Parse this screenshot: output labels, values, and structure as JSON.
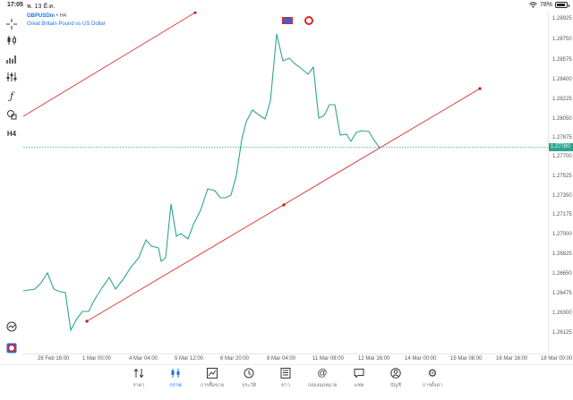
{
  "status_bar": {
    "time": "17:05",
    "date": "พ. 13 มี.ค.",
    "battery": "78%"
  },
  "legend": {
    "symbol": "GBPUSDm",
    "timeframe": "H4",
    "description": "Great Britain Pound vs US Dollar"
  },
  "price_axis": [
    "1.28925",
    "1.28750",
    "1.28575",
    "1.28400",
    "1.28225",
    "1.28050",
    "1.27875",
    "1.27700",
    "1.27525",
    "1.27350",
    "1.27175",
    "1.27000",
    "1.26825",
    "1.26650",
    "1.26475",
    "1.26300",
    "1.26125"
  ],
  "current_price": "1.27780",
  "time_axis": [
    "28 Feb 16:00",
    "1 Mar 00:00",
    "4 Mar 04:00",
    "5 Mar 12:00",
    "6 Mar 20:00",
    "8 Mar 04:00",
    "11 Mar 08:00",
    "12 Mar 16:00",
    "14 Mar 00:00",
    "15 Mar 08:00",
    "16 Mar 16:00",
    "18 Mar 00:00"
  ],
  "nav": [
    {
      "label": "ราคา",
      "icon": "quotes-icon"
    },
    {
      "label": "กราฟ",
      "icon": "chart-icon",
      "active": true
    },
    {
      "label": "การซื้อขาย",
      "icon": "trade-icon"
    },
    {
      "label": "ประวัติ",
      "icon": "history-icon"
    },
    {
      "label": "ข่าว",
      "icon": "news-icon"
    },
    {
      "label": "กล่องจดหมาย",
      "icon": "mailbox-icon"
    },
    {
      "label": "แชท",
      "icon": "chat-icon"
    },
    {
      "label": "บัญชี",
      "icon": "account-icon"
    },
    {
      "label": "การตั้งค่า",
      "icon": "settings-icon"
    }
  ],
  "colors": {
    "price_line": "#2ca58d",
    "trend_line": "#e03030",
    "accent": "#1a73e8"
  }
}
